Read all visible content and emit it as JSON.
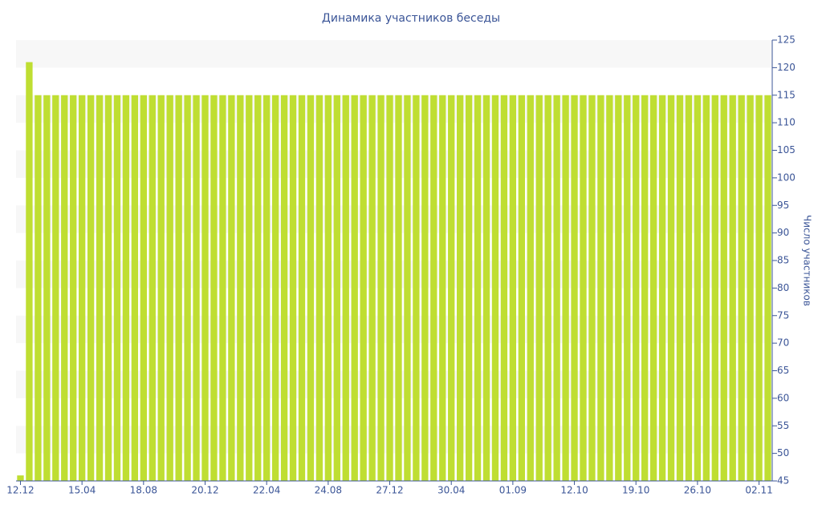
{
  "chart_data": {
    "type": "bar",
    "title": "Динамика участников беседы",
    "y_label": "Число участников",
    "categories": [
      "12.12",
      null,
      null,
      null,
      null,
      null,
      null,
      "15.04",
      null,
      null,
      null,
      null,
      null,
      null,
      "18.08",
      null,
      null,
      null,
      null,
      null,
      null,
      "20.12",
      null,
      null,
      null,
      null,
      null,
      null,
      "22.04",
      null,
      null,
      null,
      null,
      null,
      null,
      "24.08",
      null,
      null,
      null,
      null,
      null,
      null,
      "27.12",
      null,
      null,
      null,
      null,
      null,
      null,
      "30.04",
      null,
      null,
      null,
      null,
      null,
      null,
      "01.09",
      null,
      null,
      null,
      null,
      null,
      null,
      "12.10",
      null,
      null,
      null,
      null,
      null,
      null,
      "19.10",
      null,
      null,
      null,
      null,
      null,
      null,
      "26.10",
      null,
      null,
      null,
      null,
      null,
      null,
      "02.11",
      null
    ],
    "values": [
      46,
      121,
      115,
      115,
      115,
      115,
      115,
      115,
      115,
      115,
      115,
      115,
      115,
      115,
      115,
      115,
      115,
      115,
      115,
      115,
      115,
      115,
      115,
      115,
      115,
      115,
      115,
      115,
      115,
      115,
      115,
      115,
      115,
      115,
      115,
      115,
      115,
      115,
      115,
      115,
      115,
      115,
      115,
      115,
      115,
      115,
      115,
      115,
      115,
      115,
      115,
      115,
      115,
      115,
      115,
      115,
      115,
      115,
      115,
      115,
      115,
      115,
      115,
      115,
      115,
      115,
      115,
      115,
      115,
      115,
      115,
      115,
      115,
      115,
      115,
      115,
      115,
      115,
      115,
      115,
      115,
      115,
      115,
      115,
      115,
      115
    ],
    "color": "#bfde32",
    "ylim": [
      45,
      125
    ],
    "yticks": [
      45,
      50,
      55,
      60,
      65,
      70,
      75,
      80,
      85,
      90,
      95,
      100,
      105,
      110,
      115,
      120,
      125
    ],
    "y_axis_side": "right",
    "grid": true
  }
}
